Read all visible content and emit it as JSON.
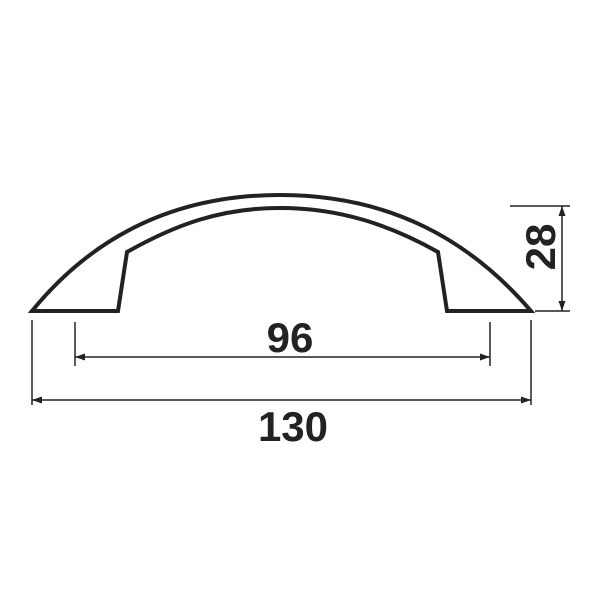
{
  "colors": {
    "line": "#222222",
    "background": "#ffffff"
  },
  "dimensions": {
    "hole_spacing": "96",
    "overall_length": "130",
    "height": "28"
  }
}
